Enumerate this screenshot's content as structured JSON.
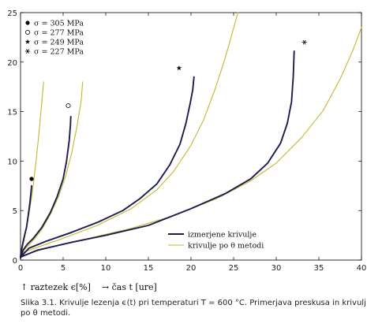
{
  "chart_data": {
    "type": "line",
    "xlim": [
      0,
      40
    ],
    "ylim": [
      0,
      25
    ],
    "x_ticks": [
      "0",
      "5",
      "10",
      "15",
      "20",
      "25",
      "30",
      "35",
      "40"
    ],
    "y_ticks": [
      "0",
      "5",
      "10",
      "15",
      "20",
      "25"
    ],
    "grid": false,
    "legend_position": "lower-right",
    "symbol_legend_position": "top-left",
    "y_axis_label": "↑ raztezek ϵ[%]",
    "x_axis_label": "→ čas t [ure]",
    "stress_levels": [
      {
        "label": "σ = 305 MPa",
        "marker": "filled-circle",
        "rupture_point": {
          "x": 1.3,
          "y": 8.2
        }
      },
      {
        "label": "σ = 277 MPa",
        "marker": "open-circle",
        "rupture_point": {
          "x": 5.6,
          "y": 15.6
        }
      },
      {
        "label": "σ = 249 MPa",
        "marker": "star",
        "rupture_point": {
          "x": 18.6,
          "y": 19.4
        }
      },
      {
        "label": "σ = 227 MPa",
        "marker": "asterisk",
        "rupture_point": {
          "x": 33.3,
          "y": 22.0
        }
      }
    ],
    "series": [
      {
        "name": "izmerjene krivulje",
        "color": "#1c1c4e",
        "curves": [
          {
            "points": [
              [
                0,
                0.4
              ],
              [
                0.1,
                1.0
              ],
              [
                0.3,
                1.8
              ],
              [
                0.5,
                2.6
              ],
              [
                0.7,
                3.3
              ],
              [
                0.85,
                4.2
              ],
              [
                1.0,
                5.1
              ],
              [
                1.1,
                5.8
              ],
              [
                1.2,
                6.6
              ],
              [
                1.3,
                7.5
              ]
            ]
          },
          {
            "points": [
              [
                0,
                0.2
              ],
              [
                0.3,
                1.0
              ],
              [
                0.8,
                1.6
              ],
              [
                1.5,
                2.2
              ],
              [
                2.5,
                3.3
              ],
              [
                3.5,
                4.8
              ],
              [
                4.3,
                6.4
              ],
              [
                5.0,
                8.2
              ],
              [
                5.4,
                10.0
              ],
              [
                5.7,
                12.0
              ],
              [
                5.85,
                13.6
              ],
              [
                5.9,
                14.5
              ]
            ]
          },
          {
            "points": [
              [
                0,
                0.3
              ],
              [
                1,
                1.2
              ],
              [
                3,
                1.9
              ],
              [
                6,
                2.8
              ],
              [
                9,
                3.8
              ],
              [
                12,
                5.0
              ],
              [
                14,
                6.2
              ],
              [
                16,
                7.7
              ],
              [
                17.5,
                9.6
              ],
              [
                18.7,
                11.7
              ],
              [
                19.4,
                13.8
              ],
              [
                19.9,
                15.8
              ],
              [
                20.2,
                17.2
              ],
              [
                20.35,
                18.5
              ]
            ]
          },
          {
            "points": [
              [
                0,
                0.3
              ],
              [
                2,
                1.0
              ],
              [
                6,
                1.8
              ],
              [
                10,
                2.5
              ],
              [
                15,
                3.5
              ],
              [
                20,
                5.2
              ],
              [
                24,
                6.7
              ],
              [
                27,
                8.2
              ],
              [
                29,
                9.8
              ],
              [
                30.5,
                11.8
              ],
              [
                31.3,
                13.8
              ],
              [
                31.8,
                16.0
              ],
              [
                32.0,
                18.6
              ],
              [
                32.1,
                21.1
              ]
            ]
          }
        ]
      },
      {
        "name": "krivulje po θ metodi",
        "color": "#c6b62a",
        "curves": [
          {
            "points": [
              [
                0,
                0.3
              ],
              [
                0.3,
                1.5
              ],
              [
                0.6,
                2.8
              ],
              [
                0.9,
                4.2
              ],
              [
                1.2,
                5.8
              ],
              [
                1.5,
                7.6
              ],
              [
                1.8,
                9.8
              ],
              [
                2.1,
                12.3
              ],
              [
                2.4,
                15.0
              ],
              [
                2.6,
                17.0
              ],
              [
                2.7,
                18.0
              ]
            ]
          },
          {
            "points": [
              [
                0,
                0.3
              ],
              [
                0.5,
                1.1
              ],
              [
                1.5,
                2.0
              ],
              [
                2.5,
                3.1
              ],
              [
                3.5,
                4.6
              ],
              [
                4.5,
                6.5
              ],
              [
                5.3,
                8.5
              ],
              [
                6.0,
                10.8
              ],
              [
                6.6,
                13.4
              ],
              [
                7.1,
                16.0
              ],
              [
                7.3,
                18.0
              ]
            ]
          },
          {
            "points": [
              [
                0,
                0.7
              ],
              [
                2,
                1.3
              ],
              [
                5,
                2.2
              ],
              [
                9,
                3.5
              ],
              [
                13,
                5.2
              ],
              [
                16,
                7.1
              ],
              [
                18,
                9.0
              ],
              [
                20,
                11.6
              ],
              [
                21.5,
                14.2
              ],
              [
                22.8,
                17.2
              ],
              [
                24,
                20.4
              ],
              [
                24.8,
                22.8
              ],
              [
                25.5,
                25.0
              ]
            ]
          },
          {
            "points": [
              [
                0,
                0.4
              ],
              [
                3,
                1.2
              ],
              [
                8,
                2.2
              ],
              [
                13,
                3.2
              ],
              [
                18,
                4.5
              ],
              [
                23,
                6.2
              ],
              [
                27,
                8.0
              ],
              [
                30,
                9.8
              ],
              [
                33,
                12.4
              ],
              [
                35.5,
                15.1
              ],
              [
                37.5,
                18.3
              ],
              [
                39,
                21.2
              ],
              [
                40,
                23.5
              ]
            ]
          }
        ]
      }
    ]
  },
  "caption": "Slika 3.1.  Krivulje lezenja ϵ(t) pri temperaturi T = 600 °C. Primerjava preskusa in krivulj po θ metodi."
}
